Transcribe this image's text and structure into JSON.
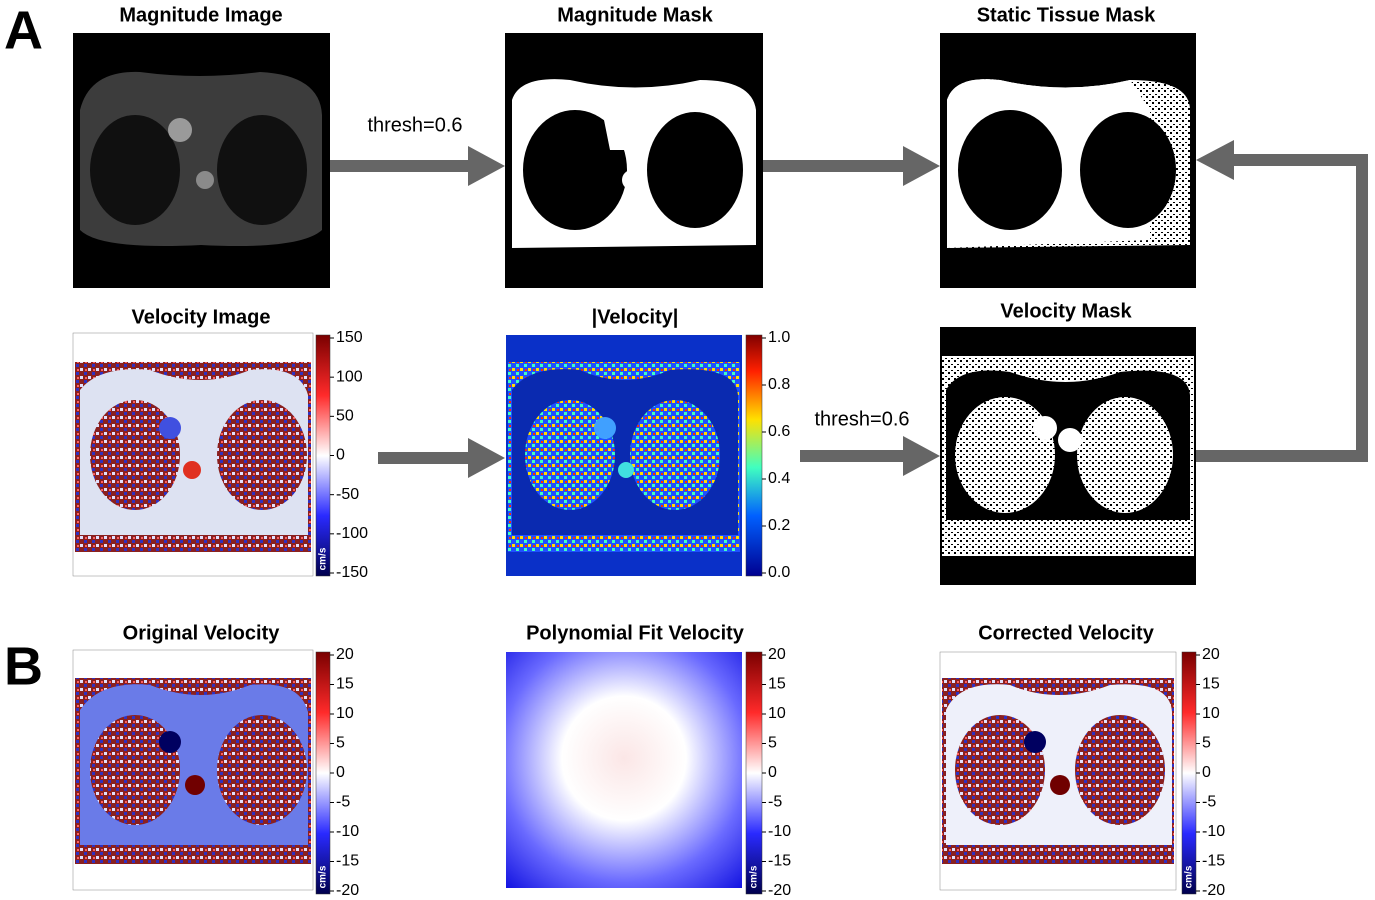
{
  "labels": {
    "a": "A",
    "b": "B"
  },
  "panels": [
    {
      "title": "Magnitude Image"
    },
    {
      "title": "Magnitude Mask"
    },
    {
      "title": "Static Tissue Mask"
    },
    {
      "title": "Velocity Image",
      "colorbar": {
        "lim": [
          -150,
          150
        ],
        "ticks": [
          150,
          100,
          50,
          0,
          -50,
          -100,
          -150
        ],
        "unit": "cm/s"
      }
    },
    {
      "title": "|Velocity|",
      "colorbar": {
        "lim": [
          0,
          1
        ],
        "ticks": [
          {
            "value": 1,
            "label": "1.0"
          },
          0.8,
          0.6,
          0.4,
          0.2,
          {
            "value": 0,
            "label": "0.0"
          }
        ]
      }
    },
    {
      "title": "Velocity Mask"
    },
    {
      "title": "Original Velocity",
      "colorbar": {
        "lim": [
          -20,
          20
        ],
        "ticks": [
          20,
          15,
          10,
          5,
          0,
          -5,
          -10,
          -15,
          -20
        ],
        "unit": "cm/s"
      }
    },
    {
      "title": "Polynomial Fit Velocity",
      "colorbar": {
        "lim": [
          -20,
          20
        ],
        "ticks": [
          20,
          15,
          10,
          5,
          0,
          -5,
          -10,
          -15,
          -20
        ],
        "unit": "cm/s"
      }
    },
    {
      "title": "Corrected Velocity",
      "colorbar": {
        "lim": [
          -20,
          20
        ],
        "ticks": [
          20,
          15,
          10,
          5,
          0,
          -5,
          -10,
          -15,
          -20
        ],
        "unit": "cm/s"
      }
    }
  ],
  "arrows": [
    {
      "label": "thresh=0.6"
    },
    {
      "label": "thresh=0.6"
    }
  ]
}
